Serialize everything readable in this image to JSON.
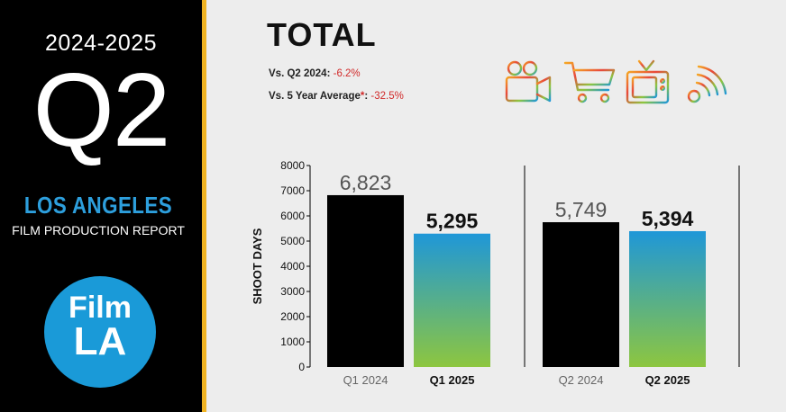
{
  "sidebar": {
    "fiscal_year": "2024-2025",
    "quarter": "Q2",
    "city": "LOS ANGELES",
    "report_name": "FILM PRODUCTION REPORT",
    "logo_line1": "Film",
    "logo_line2": "LA"
  },
  "header": {
    "title": "TOTAL",
    "comparisons": [
      {
        "label": "Vs. Q2 2024: ",
        "star": "",
        "separator": "",
        "value": "-6.2%"
      },
      {
        "label": "Vs. 5 Year Average",
        "star": "*",
        "separator": ": ",
        "value": "-32.5%"
      }
    ]
  },
  "icons": [
    "film-camera-icon",
    "shopping-cart-icon",
    "television-icon",
    "web-signal-icon"
  ],
  "colors": {
    "prior_year_bar": "#000000",
    "gradient_top": "#1f97d8",
    "gradient_bottom": "#8dc63f",
    "accent_stripe": "#f0b323",
    "brand_blue": "#1a9ad8",
    "negative": "#d12a2a"
  },
  "chart_data": {
    "type": "bar",
    "ylabel": "SHOOT DAYS",
    "ylim": [
      0,
      8000
    ],
    "yticks": [
      0,
      1000,
      2000,
      3000,
      4000,
      5000,
      6000,
      7000,
      8000
    ],
    "groups": [
      {
        "bars": [
          {
            "category": "Q1 2024",
            "value": 6823,
            "label": "6,823",
            "current": false
          },
          {
            "category": "Q1 2025",
            "value": 5295,
            "label": "5,295",
            "current": true
          }
        ]
      },
      {
        "bars": [
          {
            "category": "Q2 2024",
            "value": 5749,
            "label": "5,749",
            "current": false
          },
          {
            "category": "Q2 2025",
            "value": 5394,
            "label": "5,394",
            "current": true
          }
        ]
      }
    ]
  }
}
